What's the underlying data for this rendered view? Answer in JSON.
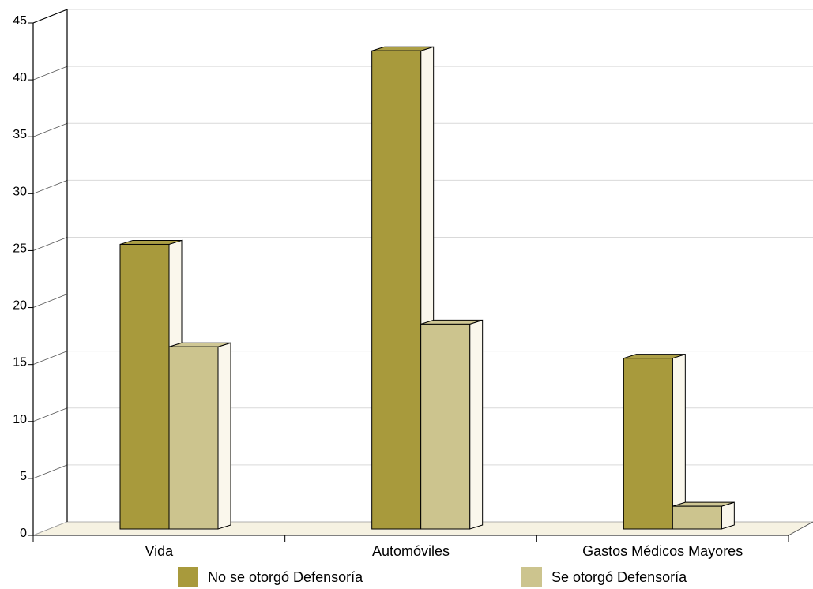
{
  "chart_data": {
    "type": "bar",
    "title": "",
    "xlabel": "",
    "ylabel": "",
    "ylim": [
      0,
      45
    ],
    "yticks": [
      0,
      5,
      10,
      15,
      20,
      25,
      30,
      35,
      40,
      45
    ],
    "grid": true,
    "legend_position": "bottom",
    "categories": [
      "Vida",
      "Automóviles",
      "Gastos Médicos Mayores"
    ],
    "series": [
      {
        "name": "No se otorgó Defensoría",
        "values": [
          25,
          42,
          15
        ],
        "color": "#a89a3c"
      },
      {
        "name": "Se otorgó Defensoría",
        "values": [
          16,
          18,
          2
        ],
        "color": "#ccc48e"
      }
    ]
  }
}
